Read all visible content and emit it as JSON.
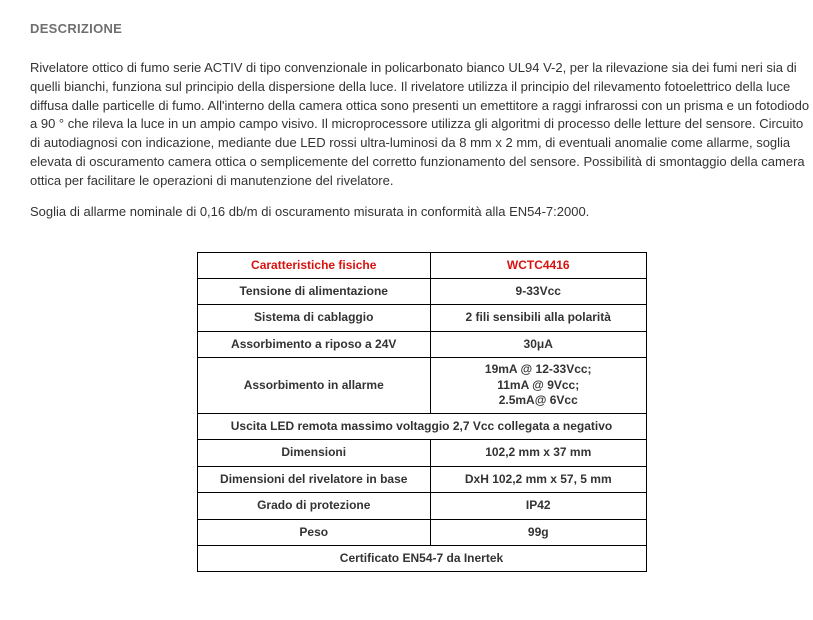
{
  "section_title": "DESCRIZIONE",
  "paragraphs": [
    "Rivelatore ottico di fumo serie ACTIV di tipo convenzionale in policarbonato bianco UL94 V-2, per la rilevazione sia dei fumi neri sia di quelli bianchi, funziona sul principio della dispersione della luce. Il rivelatore utilizza il principio del rilevamento fotoelettrico della luce diffusa dalle particelle di fumo. All'interno della camera ottica sono presenti un emettitore a raggi infrarossi con un prisma e un fotodiodo a 90 ° che rileva la luce in un ampio campo visivo. Il microprocessore utilizza gli algoritmi di processo delle letture del sensore. Circuito di autodiagnosi con indicazione, mediante due LED rossi ultra-luminosi da 8 mm x 2 mm, di eventuali anomalie come allarme, soglia elevata di oscuramento camera ottica o semplicemente del corretto funzionamento del sensore. Possibilità di smontaggio della camera ottica per facilitare le operazioni di manutenzione del rivelatore.",
    "Soglia di allarme nominale di 0,16 db/m di oscuramento misurata in conformità alla EN54-7:2000."
  ],
  "table": {
    "header_left": "Caratteristiche fisiche",
    "header_right": "WCTC4416",
    "rows": [
      {
        "type": "pair",
        "label": "Tensione di alimentazione",
        "value": "9-33Vcc"
      },
      {
        "type": "pair",
        "label": "Sistema di cablaggio",
        "value": "2 fili sensibili alla polarità"
      },
      {
        "type": "pair",
        "label": "Assorbimento a riposo a 24V",
        "value": "30μA"
      },
      {
        "type": "pair_multiline",
        "label": "Assorbimento in allarme",
        "lines": [
          "19mA @ 12-33Vcc;",
          "11mA @ 9Vcc;",
          "2.5mA@ 6Vcc"
        ]
      },
      {
        "type": "span",
        "text": "Uscita LED remota massimo voltaggio 2,7 Vcc collegata a negativo"
      },
      {
        "type": "pair",
        "label": "Dimensioni",
        "value": "102,2 mm x 37 mm"
      },
      {
        "type": "pair",
        "label": "Dimensioni del rivelatore in base",
        "value": "DxH 102,2 mm x 57, 5 mm"
      },
      {
        "type": "pair",
        "label": "Grado di protezione",
        "value": "IP42"
      },
      {
        "type": "pair",
        "label": "Peso",
        "value": "99g"
      },
      {
        "type": "span",
        "text": "Certificato EN54-7 da Inertek"
      }
    ],
    "colors": {
      "header_text": "#d8130f",
      "border": "#000000",
      "body_text": "#333333"
    }
  }
}
